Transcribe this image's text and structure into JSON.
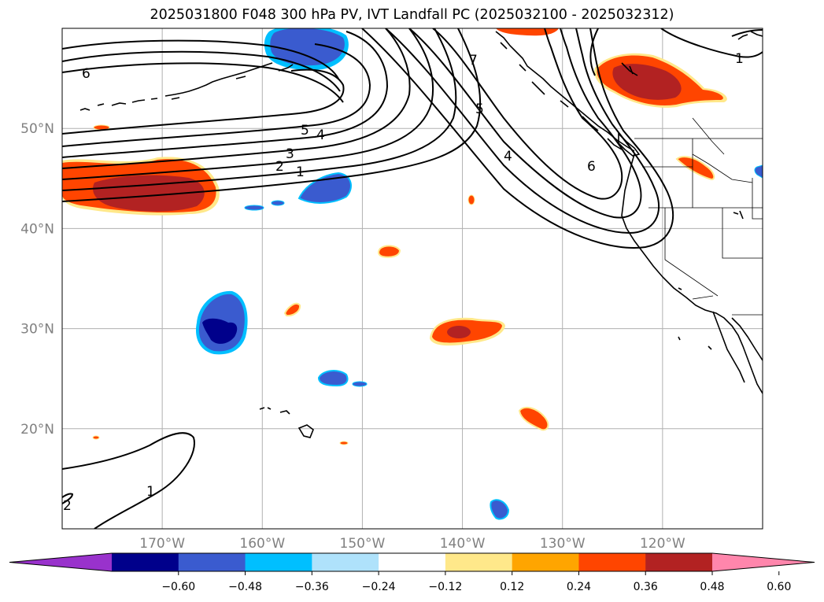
{
  "title": "2025031800 F048 300 hPa PV, IVT Landfall PC (2025032100 - 2025032312)",
  "map": {
    "lon_range": [
      -180,
      -110
    ],
    "lat_range": [
      10,
      60
    ],
    "gridlines": true,
    "lat_ticks": [
      {
        "value": 50,
        "label": "50°N"
      },
      {
        "value": 40,
        "label": "40°N"
      },
      {
        "value": 30,
        "label": "30°N"
      },
      {
        "value": 20,
        "label": "20°N"
      }
    ],
    "lon_ticks": [
      {
        "value": -170,
        "label": "170°W"
      },
      {
        "value": -160,
        "label": "160°W"
      },
      {
        "value": -150,
        "label": "150°W"
      },
      {
        "value": -140,
        "label": "140°W"
      },
      {
        "value": -130,
        "label": "130°W"
      },
      {
        "value": -120,
        "label": "120°W"
      }
    ],
    "pv_contour_labels": [
      "6",
      "5",
      "4",
      "3",
      "2",
      "1",
      "7",
      "5",
      "4",
      "6",
      "1",
      "1",
      "2"
    ]
  },
  "colorbar": {
    "ticks": [
      "−0.60",
      "−0.48",
      "−0.36",
      "−0.24",
      "−0.12",
      "0.12",
      "0.24",
      "0.36",
      "0.48",
      "0.60"
    ],
    "colors": [
      "#9932cc",
      "#00008b",
      "#3a5bcf",
      "#00bfff",
      "#afe2fb",
      "#ffffff",
      "#ffe88a",
      "#ffa500",
      "#ff4500",
      "#b22222",
      "#ff86ac"
    ],
    "extend": "both"
  }
}
